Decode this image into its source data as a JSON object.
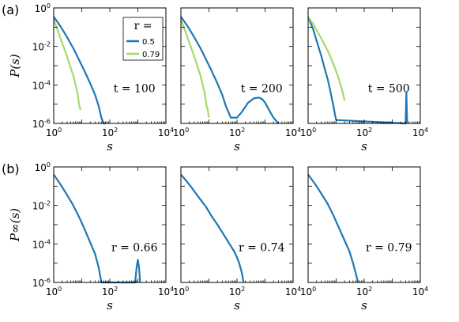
{
  "figure": {
    "row_labels": [
      "(a)",
      "(b)"
    ],
    "ylabel_a": "P(s)",
    "ylabel_b": "P∞(s)",
    "xlabel": "s",
    "xticks": [
      "10^0",
      "10^2",
      "10^4"
    ],
    "yticks": [
      "10^0",
      "10^-2",
      "10^-4",
      "10^-6"
    ]
  },
  "legend": {
    "title": "r =",
    "entries": [
      {
        "label": "0.5",
        "color": "#1f77b4"
      },
      {
        "label": "0.79",
        "color": "#a6d96a"
      }
    ]
  },
  "chart_data": [
    {
      "type": "line",
      "row": "a",
      "annotation": "t = 100",
      "xscale": "log",
      "yscale": "log",
      "xlim": [
        1,
        10000
      ],
      "ylim": [
        1e-06,
        1
      ],
      "series": [
        {
          "name": "0.5",
          "color": "#1f77b4",
          "x": [
            1,
            1.5,
            2,
            3,
            5,
            8,
            12,
            20,
            30,
            40,
            50,
            60,
            70
          ],
          "y": [
            0.35,
            0.15,
            0.08,
            0.03,
            0.008,
            0.002,
            0.0006,
            0.00012,
            3e-05,
            8e-06,
            2e-06,
            1e-06,
            1e-06
          ]
        },
        {
          "name": "0.79",
          "color": "#a6d96a",
          "x": [
            1,
            1.5,
            2,
            3,
            4,
            5,
            6,
            7,
            8,
            9
          ],
          "y": [
            0.25,
            0.05,
            0.015,
            0.003,
            0.0008,
            0.0003,
            0.0001,
            4e-05,
            1e-05,
            5e-06
          ]
        }
      ]
    },
    {
      "type": "line",
      "row": "a",
      "annotation": "t = 200",
      "xscale": "log",
      "yscale": "log",
      "xlim": [
        1,
        10000
      ],
      "ylim": [
        1e-06,
        1
      ],
      "series": [
        {
          "name": "0.5",
          "color": "#1f77b4",
          "x": [
            1,
            1.5,
            2,
            3,
            5,
            8,
            12,
            20,
            30,
            40,
            60,
            100,
            150,
            250,
            400,
            600,
            800,
            1000,
            1500,
            2000,
            3000
          ],
          "y": [
            0.35,
            0.15,
            0.08,
            0.03,
            0.008,
            0.002,
            0.0006,
            0.00012,
            3e-05,
            8e-06,
            2e-06,
            2e-06,
            4e-06,
            1.2e-05,
            2e-05,
            2.2e-05,
            1.8e-05,
            1.2e-05,
            4e-06,
            2e-06,
            1e-06
          ]
        },
        {
          "name": "0.79",
          "color": "#a6d96a",
          "x": [
            1,
            1.5,
            2,
            3,
            4,
            5,
            6,
            7,
            8,
            9,
            10
          ],
          "y": [
            0.25,
            0.05,
            0.015,
            0.003,
            0.0008,
            0.0003,
            0.0001,
            4e-05,
            1e-05,
            5e-06,
            2e-06
          ]
        }
      ]
    },
    {
      "type": "line",
      "row": "a",
      "annotation": "t = 500",
      "xscale": "log",
      "yscale": "log",
      "xlim": [
        1,
        10000
      ],
      "ylim": [
        1e-06,
        1
      ],
      "series": [
        {
          "name": "0.5",
          "color": "#1f77b4",
          "x": [
            1,
            1.5,
            2,
            3,
            4,
            5,
            6,
            7,
            8,
            9,
            10,
            3000,
            3200,
            3400
          ],
          "y": [
            0.35,
            0.08,
            0.02,
            0.003,
            0.0006,
            0.0002,
            6e-05,
            2e-05,
            8e-06,
            3e-06,
            1.5e-06,
            1e-06,
            4e-05,
            1e-06
          ]
        },
        {
          "name": "0.79",
          "color": "#a6d96a",
          "x": [
            1,
            1.5,
            2,
            3,
            5,
            8,
            12,
            15,
            18,
            20
          ],
          "y": [
            0.35,
            0.15,
            0.07,
            0.025,
            0.006,
            0.0012,
            0.00025,
            8e-05,
            3e-05,
            1.5e-05
          ]
        }
      ]
    },
    {
      "type": "line",
      "row": "b",
      "annotation": "r = 0.66",
      "xscale": "log",
      "yscale": "log",
      "xlim": [
        1,
        10000
      ],
      "ylim": [
        1e-06,
        1
      ],
      "series": [
        {
          "color": "#1f77b4",
          "x": [
            1,
            1.5,
            2,
            3,
            5,
            8,
            12,
            20,
            30,
            40,
            50,
            800,
            900,
            1000,
            1100,
            1200
          ],
          "y": [
            0.4,
            0.17,
            0.09,
            0.035,
            0.01,
            0.0025,
            0.0007,
            0.00012,
            3e-05,
            6e-06,
            1e-06,
            1e-06,
            6e-06,
            1.5e-05,
            6e-06,
            1e-06
          ]
        }
      ]
    },
    {
      "type": "line",
      "row": "b",
      "annotation": "r = 0.74",
      "xscale": "log",
      "yscale": "log",
      "xlim": [
        1,
        10000
      ],
      "ylim": [
        1e-06,
        1
      ],
      "series": [
        {
          "color": "#1f77b4",
          "x": [
            1,
            1.5,
            2,
            3,
            5,
            8,
            12,
            20,
            30,
            50,
            80,
            100,
            120,
            150,
            170
          ],
          "y": [
            0.4,
            0.2,
            0.12,
            0.055,
            0.02,
            0.008,
            0.003,
            0.001,
            0.0004,
            0.00012,
            4e-05,
            2e-05,
            1e-05,
            3e-06,
            1e-06
          ]
        }
      ]
    },
    {
      "type": "line",
      "row": "b",
      "annotation": "r = 0.79",
      "xscale": "log",
      "yscale": "log",
      "xlim": [
        1,
        10000
      ],
      "ylim": [
        1e-06,
        1
      ],
      "series": [
        {
          "color": "#1f77b4",
          "x": [
            1,
            1.5,
            2,
            3,
            5,
            8,
            12,
            20,
            30,
            40,
            50,
            60
          ],
          "y": [
            0.4,
            0.18,
            0.1,
            0.04,
            0.012,
            0.003,
            0.0008,
            0.00015,
            4e-05,
            1e-05,
            3e-06,
            1e-06
          ]
        }
      ]
    }
  ]
}
